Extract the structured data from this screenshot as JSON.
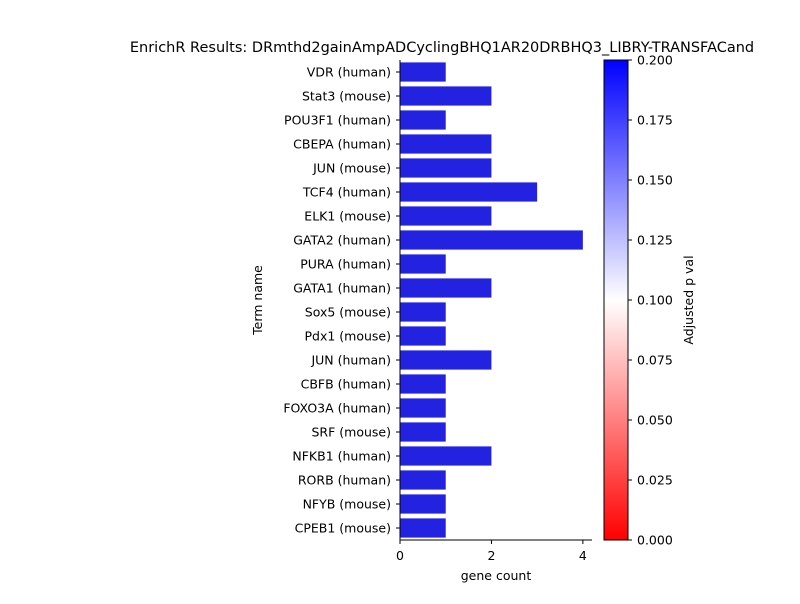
{
  "chart_data": {
    "type": "bar",
    "orientation": "horizontal",
    "title": "EnrichR Results: DRmthd2gainAmpADCyclingBHQ1AR20DRBHQ3_LIBRY-TRANSFACand",
    "xlabel": "gene count",
    "ylabel": "Term name",
    "xlim": [
      0,
      4.2
    ],
    "xticks": [
      0,
      2,
      4
    ],
    "grid": false,
    "bar_color": "#2222e0",
    "categories": [
      "VDR (human)",
      "Stat3 (mouse)",
      "POU3F1 (human)",
      "CBEPA (human)",
      "JUN (mouse)",
      "TCF4 (human)",
      "ELK1 (mouse)",
      "GATA2 (human)",
      "PURA (human)",
      "GATA1 (human)",
      "Sox5 (mouse)",
      "Pdx1 (mouse)",
      "JUN (human)",
      "CBFB (human)",
      "FOXO3A (human)",
      "SRF (mouse)",
      "NFKB1 (human)",
      "RORB (human)",
      "NFYB (mouse)",
      "CPEB1 (mouse)"
    ],
    "values": [
      1,
      2,
      1,
      2,
      2,
      3,
      2,
      4,
      1,
      2,
      1,
      1,
      2,
      1,
      1,
      1,
      2,
      1,
      1,
      1
    ],
    "colorbar": {
      "label": "Adjusted p val",
      "range": [
        0,
        0.2
      ],
      "ticks": [
        "0.000",
        "0.025",
        "0.050",
        "0.075",
        "0.100",
        "0.125",
        "0.150",
        "0.175",
        "0.200"
      ],
      "colors": [
        "#ff0000",
        "#ffffff",
        "#0000ff"
      ]
    }
  }
}
